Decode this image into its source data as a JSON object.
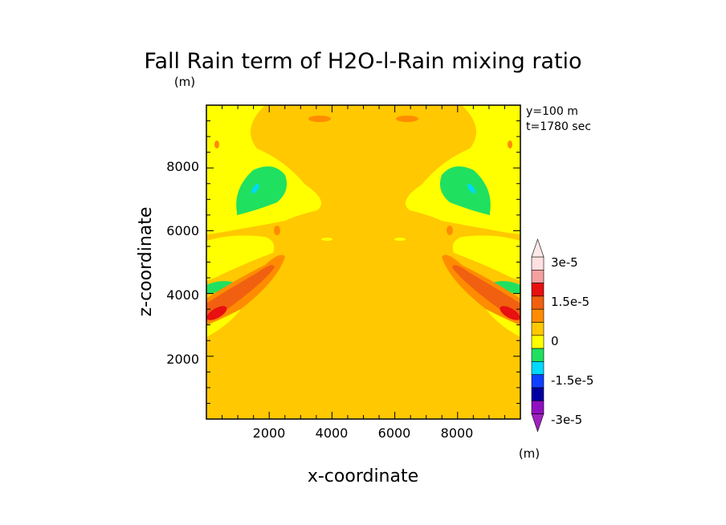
{
  "chart_data": {
    "type": "heatmap",
    "title": "Fall Rain term of H2O-l-Rain mixing ratio",
    "unit_top": "(m)",
    "xlabel": "x-coordinate",
    "ylabel": "z-coordinate",
    "xlim": [
      0,
      10000
    ],
    "ylim": [
      0,
      10000
    ],
    "x_ticks": [
      "2000",
      "4000",
      "6000",
      "8000"
    ],
    "y_ticks": [
      "2000",
      "4000",
      "6000",
      "8000"
    ],
    "annotation_y": "y=100 m",
    "annotation_t": "t=1780 sec",
    "colorbar": {
      "labels": [
        "3e-5",
        "1.5e-5",
        "0",
        "-1.5e-5",
        "-3e-5"
      ],
      "unit": "(m)",
      "colors": [
        "#ffe0e0",
        "#f4a0a0",
        "#e81010",
        "#f06010",
        "#ff8c00",
        "#ffc800",
        "#ffff00",
        "#20e060",
        "#00d8ff",
        "#1040ff",
        "#0000a0",
        "#9010c0"
      ],
      "over_color": "#ffe8e8",
      "under_color": "#a020c0"
    },
    "background_level_color": "#ffc800",
    "features": [
      {
        "x": 1900,
        "z": 7100,
        "level": "negative",
        "color": "#20e060"
      },
      {
        "x": 8100,
        "z": 7100,
        "level": "negative",
        "color": "#20e060"
      },
      {
        "x": 700,
        "z": 3400,
        "level": "positive",
        "color": "#e81010"
      },
      {
        "x": 9300,
        "z": 3400,
        "level": "positive",
        "color": "#e81010"
      }
    ]
  }
}
